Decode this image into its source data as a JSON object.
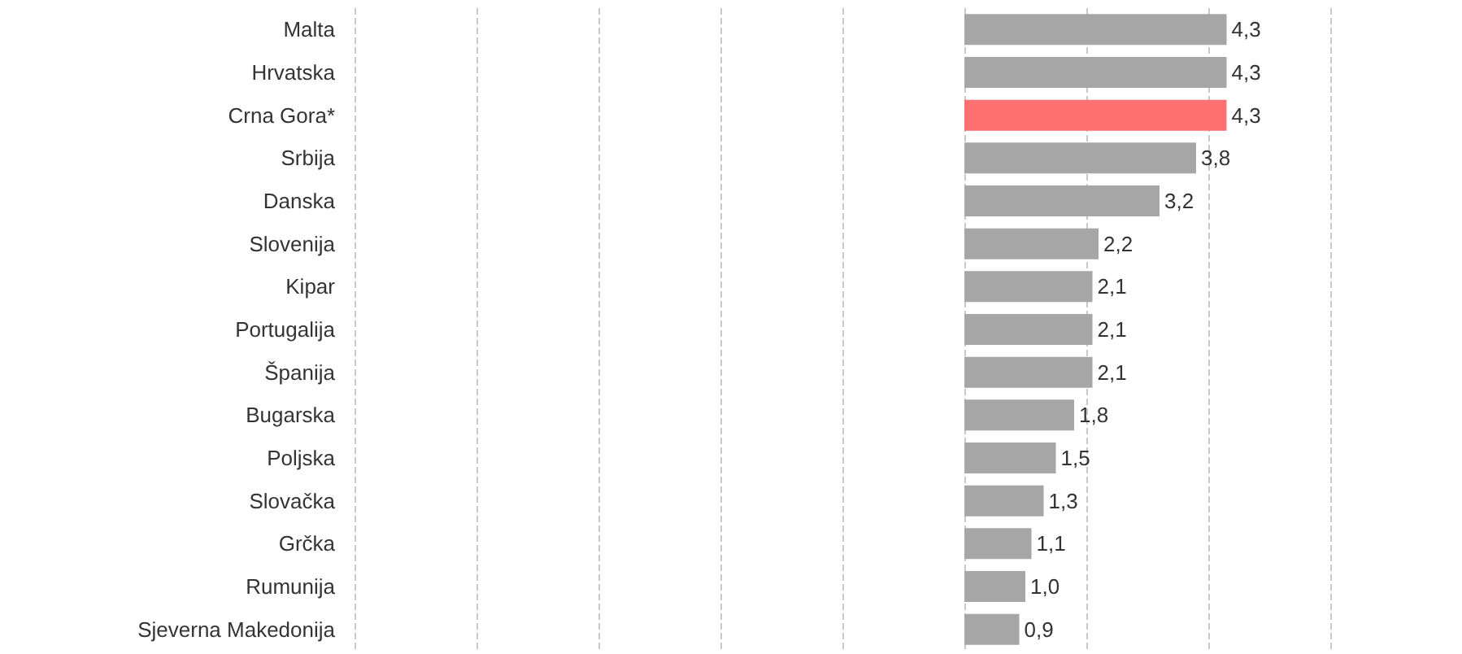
{
  "chart_data": {
    "type": "bar",
    "orientation": "horizontal",
    "categories": [
      "Malta",
      "Hrvatska",
      "Crna Gora*",
      "Srbija",
      "Danska",
      "Slovenija",
      "Kipar",
      "Portugalija",
      "Španija",
      "Bugarska",
      "Poljska",
      "Slovačka",
      "Grčka",
      "Rumunija",
      "Sjeverna Makedonija"
    ],
    "values": [
      4.3,
      4.3,
      4.3,
      3.8,
      3.2,
      2.2,
      2.1,
      2.1,
      2.1,
      1.8,
      1.5,
      1.3,
      1.1,
      1.0,
      0.9
    ],
    "value_labels": [
      "4,3",
      "4,3",
      "4,3",
      "3,8",
      "3,2",
      "2,2",
      "2,1",
      "2,1",
      "2,1",
      "1,8",
      "1,5",
      "1,3",
      "1,1",
      "1,0",
      "0,9"
    ],
    "colors": [
      "#a6a6a6",
      "#a6a6a6",
      "#ff7070",
      "#a6a6a6",
      "#a6a6a6",
      "#a6a6a6",
      "#a6a6a6",
      "#a6a6a6",
      "#a6a6a6",
      "#a6a6a6",
      "#a6a6a6",
      "#a6a6a6",
      "#a6a6a6",
      "#a6a6a6",
      "#a6a6a6"
    ],
    "xlim": [
      -10,
      6
    ],
    "xticks": [
      {
        "value": -10,
        "label": null
      },
      {
        "value": -8,
        "label": null
      },
      {
        "value": -6,
        "label": null
      },
      {
        "value": -4,
        "label": null
      },
      {
        "value": -2,
        "label": null
      },
      {
        "value": 0,
        "label": null
      },
      {
        "value": 2,
        "label": null
      },
      {
        "value": 4,
        "label": null
      },
      {
        "value": 6,
        "label": null
      }
    ],
    "grid": "x",
    "tick_labels": "y"
  }
}
